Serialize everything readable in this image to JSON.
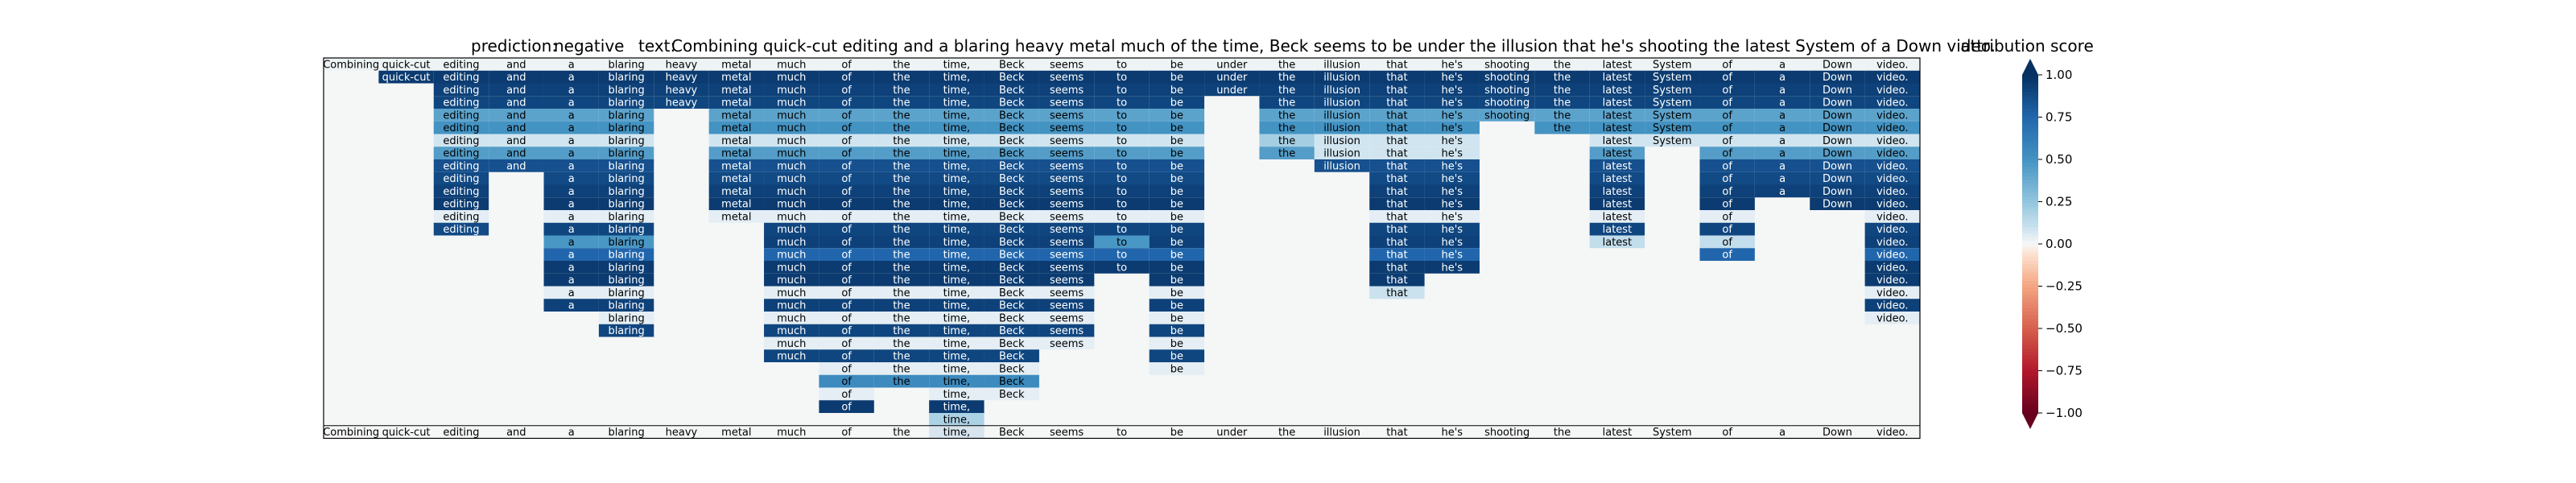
{
  "chart_data": {
    "type": "heatmap",
    "prediction_label": "prediction:",
    "prediction": "negative",
    "text_label": "text:",
    "text": "Combining quick-cut editing and a blaring heavy metal much of the time, Beck seems to be under the illusion that he's shooting the latest System of a Down video.",
    "colorbar_title": "attribution score",
    "colorbar_ticks": [
      "1.00",
      "0.75",
      "0.50",
      "0.25",
      "0.00",
      "−0.25",
      "−0.50",
      "−0.75",
      "−1.00"
    ],
    "colorbar_range": [
      -1,
      1
    ],
    "colormap": "RdBu",
    "tokens": [
      "Combining",
      "quick-cut",
      "editing",
      "and",
      "a",
      "blaring",
      "heavy",
      "metal",
      "much",
      "of",
      "the",
      "time,",
      "Beck",
      "seems",
      "to",
      "be",
      "under",
      "the",
      "illusion",
      "that",
      "he's",
      "shooting",
      "the",
      "latest",
      "System",
      "of",
      "a",
      "Down",
      "video."
    ],
    "colors": {
      "background": "#f5f6f6",
      "bar": "#d8e4ee",
      "lightest_positive": "#e2edf5"
    },
    "row_levels": [
      [
        0.02,
        0.02,
        0.02,
        0.02,
        0.02,
        0.02,
        0.02,
        0.02,
        0.02,
        0.02,
        0.02,
        0.02,
        0.02,
        0.02,
        0.02,
        0.02,
        0.02,
        0.02,
        0.02,
        0.02,
        0.02,
        0.02,
        0.02,
        0.02,
        0.02,
        0.02,
        0.02,
        0.02,
        0.02
      ],
      [
        null,
        0.95,
        0.95,
        0.95,
        0.95,
        0.95,
        0.95,
        0.95,
        0.95,
        0.95,
        0.95,
        0.95,
        0.95,
        0.95,
        0.95,
        0.95,
        0.95,
        0.95,
        0.95,
        0.95,
        0.95,
        0.95,
        0.95,
        0.95,
        0.95,
        0.95,
        0.95,
        0.95,
        0.95
      ],
      [
        null,
        null,
        0.92,
        0.92,
        0.92,
        0.92,
        0.92,
        0.92,
        0.92,
        0.92,
        0.92,
        0.92,
        0.92,
        0.92,
        0.92,
        0.92,
        0.92,
        0.92,
        0.92,
        0.92,
        0.92,
        0.92,
        0.92,
        0.92,
        0.92,
        0.92,
        0.92,
        0.92,
        0.92
      ],
      [
        null,
        null,
        0.9,
        0.9,
        0.9,
        0.9,
        0.9,
        0.9,
        0.9,
        0.9,
        0.9,
        0.9,
        0.9,
        0.9,
        0.9,
        0.9,
        null,
        0.9,
        0.9,
        0.9,
        0.9,
        0.9,
        0.9,
        0.9,
        0.9,
        0.9,
        0.9,
        0.9,
        0.9
      ],
      [
        null,
        null,
        0.42,
        0.42,
        0.42,
        0.42,
        null,
        0.42,
        0.42,
        0.42,
        0.42,
        0.42,
        0.42,
        0.42,
        0.42,
        0.42,
        null,
        0.42,
        0.42,
        0.42,
        0.42,
        0.42,
        0.42,
        0.42,
        0.42,
        0.42,
        0.42,
        0.42,
        0.42
      ],
      [
        null,
        null,
        0.5,
        0.5,
        0.5,
        0.5,
        null,
        0.5,
        0.5,
        0.5,
        0.5,
        0.5,
        0.5,
        0.5,
        0.5,
        0.5,
        null,
        0.5,
        0.5,
        0.5,
        0.5,
        null,
        0.5,
        0.5,
        0.5,
        0.5,
        0.5,
        0.5,
        0.5
      ],
      [
        null,
        null,
        0.08,
        0.08,
        0.08,
        0.08,
        null,
        0.08,
        0.08,
        0.08,
        0.08,
        0.08,
        0.08,
        0.08,
        0.08,
        0.08,
        null,
        0.2,
        0.08,
        0.08,
        0.08,
        null,
        null,
        0.08,
        0.08,
        0.08,
        0.08,
        0.08,
        0.08
      ],
      [
        null,
        null,
        0.45,
        0.45,
        0.45,
        0.45,
        null,
        0.45,
        0.45,
        0.45,
        0.45,
        0.45,
        0.45,
        0.45,
        0.45,
        0.45,
        null,
        0.45,
        0.08,
        0.08,
        0.08,
        null,
        null,
        0.45,
        null,
        0.45,
        0.45,
        0.45,
        0.45
      ],
      [
        null,
        null,
        0.85,
        0.85,
        0.85,
        0.85,
        null,
        0.85,
        0.85,
        0.85,
        0.85,
        0.85,
        0.85,
        0.85,
        0.85,
        0.85,
        null,
        null,
        0.85,
        0.85,
        0.85,
        null,
        null,
        0.85,
        null,
        0.85,
        0.85,
        0.85,
        0.85
      ],
      [
        null,
        null,
        0.88,
        null,
        0.88,
        0.88,
        null,
        0.88,
        0.88,
        0.88,
        0.88,
        0.88,
        0.88,
        0.88,
        0.88,
        0.88,
        null,
        null,
        null,
        0.88,
        0.88,
        null,
        null,
        0.88,
        null,
        0.88,
        0.88,
        0.88,
        0.88
      ],
      [
        null,
        null,
        0.92,
        null,
        0.92,
        0.92,
        null,
        0.92,
        0.92,
        0.92,
        0.92,
        0.92,
        0.92,
        0.92,
        0.92,
        0.92,
        null,
        null,
        null,
        0.92,
        0.92,
        null,
        null,
        0.92,
        null,
        0.92,
        0.92,
        0.92,
        0.92
      ],
      [
        null,
        null,
        0.95,
        null,
        0.95,
        0.95,
        null,
        0.95,
        0.95,
        0.95,
        0.95,
        0.95,
        0.95,
        0.95,
        0.95,
        0.95,
        null,
        null,
        null,
        0.95,
        0.95,
        null,
        null,
        0.95,
        null,
        0.95,
        null,
        0.95,
        0.95
      ],
      [
        null,
        null,
        0.04,
        null,
        0.04,
        0.04,
        null,
        0.04,
        0.04,
        0.04,
        0.04,
        0.04,
        0.04,
        0.04,
        0.04,
        0.04,
        null,
        null,
        null,
        0.04,
        0.04,
        null,
        null,
        0.04,
        null,
        0.04,
        null,
        null,
        0.04
      ],
      [
        null,
        null,
        0.88,
        null,
        0.9,
        0.9,
        null,
        null,
        0.9,
        0.9,
        0.9,
        0.9,
        0.9,
        0.9,
        0.9,
        0.9,
        null,
        null,
        null,
        0.9,
        0.9,
        null,
        null,
        0.9,
        null,
        0.9,
        null,
        null,
        0.9
      ],
      [
        null,
        null,
        null,
        null,
        0.48,
        0.48,
        null,
        null,
        0.92,
        0.92,
        0.92,
        0.92,
        0.92,
        0.92,
        0.48,
        0.92,
        null,
        null,
        null,
        0.92,
        0.92,
        null,
        null,
        0.12,
        null,
        0.12,
        null,
        null,
        0.92
      ],
      [
        null,
        null,
        null,
        null,
        0.75,
        0.75,
        null,
        null,
        0.75,
        0.75,
        0.75,
        0.75,
        0.75,
        0.75,
        0.75,
        0.75,
        null,
        null,
        null,
        0.75,
        0.75,
        null,
        null,
        null,
        null,
        0.75,
        null,
        null,
        0.75
      ],
      [
        null,
        null,
        null,
        null,
        0.95,
        0.95,
        null,
        null,
        0.95,
        0.95,
        0.95,
        0.95,
        0.95,
        0.95,
        0.95,
        0.95,
        null,
        null,
        null,
        0.95,
        0.95,
        null,
        null,
        null,
        null,
        null,
        null,
        null,
        0.95
      ],
      [
        null,
        null,
        null,
        null,
        0.95,
        0.95,
        null,
        null,
        0.95,
        0.95,
        0.95,
        0.95,
        0.95,
        0.95,
        null,
        0.95,
        null,
        null,
        null,
        0.95,
        null,
        null,
        null,
        null,
        null,
        null,
        null,
        null,
        0.95
      ],
      [
        null,
        null,
        null,
        null,
        0.04,
        0.04,
        null,
        null,
        0.04,
        0.04,
        0.04,
        0.04,
        0.04,
        0.04,
        null,
        0.04,
        null,
        null,
        null,
        0.1,
        null,
        null,
        null,
        null,
        null,
        null,
        null,
        null,
        0.04
      ],
      [
        null,
        null,
        null,
        null,
        0.92,
        0.92,
        null,
        null,
        0.92,
        0.92,
        0.92,
        0.92,
        0.92,
        0.92,
        null,
        0.92,
        null,
        null,
        null,
        null,
        null,
        null,
        null,
        null,
        null,
        null,
        null,
        null,
        0.92
      ],
      [
        null,
        null,
        null,
        null,
        null,
        0.04,
        null,
        null,
        0.04,
        0.04,
        0.04,
        0.04,
        0.04,
        0.04,
        null,
        0.04,
        null,
        null,
        null,
        null,
        null,
        null,
        null,
        null,
        null,
        null,
        null,
        null,
        0.04
      ],
      [
        null,
        null,
        null,
        null,
        null,
        0.9,
        null,
        null,
        0.9,
        0.9,
        0.9,
        0.9,
        0.9,
        0.9,
        null,
        0.9,
        null,
        null,
        null,
        null,
        null,
        null,
        null,
        null,
        null,
        null,
        null,
        null,
        null
      ],
      [
        null,
        null,
        null,
        null,
        null,
        null,
        null,
        null,
        0.04,
        0.04,
        0.04,
        0.04,
        0.04,
        0.04,
        null,
        0.04,
        null,
        null,
        null,
        null,
        null,
        null,
        null,
        null,
        null,
        null,
        null,
        null,
        null
      ],
      [
        null,
        null,
        null,
        null,
        null,
        null,
        null,
        null,
        0.9,
        0.9,
        0.9,
        0.9,
        0.9,
        null,
        null,
        0.9,
        null,
        null,
        null,
        null,
        null,
        null,
        null,
        null,
        null,
        null,
        null,
        null,
        null
      ],
      [
        null,
        null,
        null,
        null,
        null,
        null,
        null,
        null,
        null,
        0.04,
        0.04,
        0.04,
        0.04,
        null,
        null,
        0.04,
        null,
        null,
        null,
        null,
        null,
        null,
        null,
        null,
        null,
        null,
        null,
        null,
        null
      ],
      [
        null,
        null,
        null,
        null,
        null,
        null,
        null,
        null,
        null,
        0.55,
        0.55,
        0.55,
        0.55,
        null,
        null,
        null,
        null,
        null,
        null,
        null,
        null,
        null,
        null,
        null,
        null,
        null,
        null,
        null,
        null
      ],
      [
        null,
        null,
        null,
        null,
        null,
        null,
        null,
        null,
        null,
        0.04,
        null,
        0.04,
        0.04,
        null,
        null,
        null,
        null,
        null,
        null,
        null,
        null,
        null,
        null,
        null,
        null,
        null,
        null,
        null,
        null
      ],
      [
        null,
        null,
        null,
        null,
        null,
        null,
        null,
        null,
        null,
        0.95,
        null,
        0.95,
        null,
        null,
        null,
        null,
        null,
        null,
        null,
        null,
        null,
        null,
        null,
        null,
        null,
        null,
        null,
        null,
        null
      ],
      [
        null,
        null,
        null,
        null,
        null,
        null,
        null,
        null,
        null,
        null,
        null,
        0.18,
        null,
        null,
        null,
        null,
        null,
        null,
        null,
        null,
        null,
        null,
        null,
        null,
        null,
        null,
        null,
        null,
        null
      ]
    ]
  }
}
